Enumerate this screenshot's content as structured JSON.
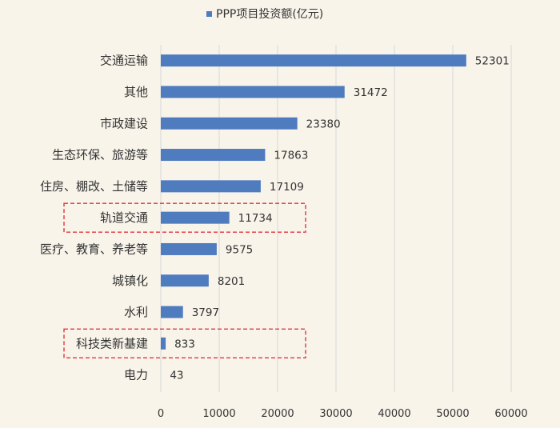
{
  "chart_data": {
    "type": "bar",
    "orientation": "horizontal",
    "legend": {
      "label": "PPP项目投资额(亿元)",
      "position": "top",
      "color": "#4f7bbf"
    },
    "categories": [
      "交通运输",
      "其他",
      "市政建设",
      "生态环保、旅游等",
      "住房、棚改、土储等",
      "轨道交通",
      "医疗、教育、养老等",
      "城镇化",
      "水利",
      "科技类新基建",
      "电力"
    ],
    "series": [
      {
        "name": "PPP项目投资额(亿元)",
        "values": [
          52301,
          31472,
          23380,
          17863,
          17109,
          11734,
          9575,
          8201,
          3797,
          833,
          43
        ]
      }
    ],
    "xlim": [
      0,
      60000
    ],
    "x_ticks": [
      "0",
      "10000",
      "20000",
      "30000",
      "40000",
      "50000",
      "60000"
    ],
    "grid": "vertical",
    "highlighted_categories": [
      "轨道交通",
      "科技类新基建"
    ],
    "colors": {
      "bar": "#4f7bbf",
      "highlight_box": "#e0353b",
      "grid": "#d9d9d9",
      "text": "#333333"
    }
  }
}
